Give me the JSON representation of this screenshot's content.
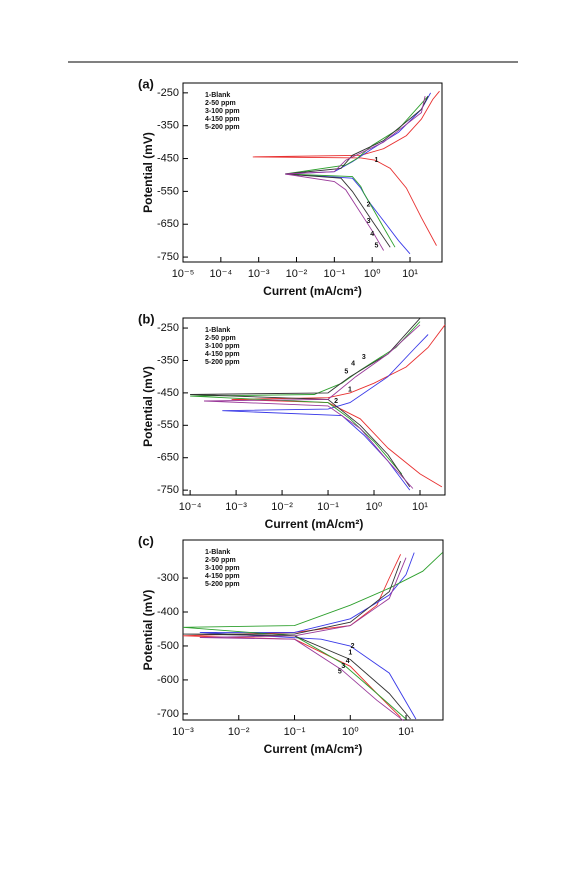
{
  "chart_data": [
    {
      "type": "line",
      "panel_label": "(a)",
      "x_label": "Current (mA/cm²)",
      "y_label": "Potential (mV)",
      "xscale": "log",
      "legend": "upper left",
      "xlim": [
        1e-05,
        70
      ],
      "ylim": [
        -765,
        -220
      ],
      "xticks": [
        {
          "value": 1e-05,
          "label": "10⁻⁵"
        },
        {
          "value": 0.0001,
          "label": "10⁻⁴"
        },
        {
          "value": 0.001,
          "label": "10⁻³"
        },
        {
          "value": 0.01,
          "label": "10⁻²"
        },
        {
          "value": 0.1,
          "label": "10⁻¹"
        },
        {
          "value": 1,
          "label": "10⁰"
        },
        {
          "value": 10,
          "label": "10¹"
        }
      ],
      "yticks": [
        -250,
        -350,
        -450,
        -550,
        -650,
        -750
      ],
      "series": [
        {
          "name": "1-Blank",
          "color": "#e83030",
          "x": [
            50,
            20,
            8,
            3,
            1.2,
            0.5,
            0.0007,
            0.5,
            2,
            8,
            20,
            40,
            60
          ],
          "values": [
            -715,
            -630,
            -540,
            -480,
            -455,
            -448,
            -445,
            -440,
            -420,
            -380,
            -330,
            -270,
            -245
          ]
        },
        {
          "name": "2-50 ppm",
          "color": "#3a3ae8",
          "x": [
            10,
            5,
            2,
            0.8,
            0.5,
            0.3,
            0.005,
            0.1,
            0.3,
            1,
            5,
            20,
            35
          ],
          "values": [
            -740,
            -700,
            -640,
            -580,
            -540,
            -510,
            -497,
            -490,
            -460,
            -420,
            -370,
            -300,
            -250
          ]
        },
        {
          "name": "3-100 ppm",
          "color": "#2ea02e",
          "x": [
            4,
            2,
            0.9,
            0.6,
            0.5,
            0.3,
            0.005,
            0.2,
            0.4,
            1,
            5,
            30
          ],
          "values": [
            -720,
            -660,
            -590,
            -555,
            -535,
            -505,
            -497,
            -470,
            -450,
            -410,
            -360,
            -260
          ]
        },
        {
          "name": "4-150 ppm",
          "color": "#333333",
          "x": [
            3,
            1,
            0.3,
            0.15,
            0.005,
            0.15,
            0.3,
            2,
            20,
            30
          ],
          "values": [
            -720,
            -640,
            -550,
            -510,
            -497,
            -480,
            -440,
            -395,
            -300,
            -260
          ]
        },
        {
          "name": "5-200 ppm",
          "color": "#9a3a9a",
          "x": [
            2,
            1,
            0.2,
            0.1,
            0.005,
            0.1,
            0.2,
            2,
            20,
            25
          ],
          "values": [
            -730,
            -670,
            -545,
            -520,
            -497,
            -490,
            -455,
            -400,
            -310,
            -260
          ]
        }
      ],
      "annotations": [
        {
          "text": "1",
          "x": 1.3,
          "y": -455
        },
        {
          "text": "2",
          "x": 0.8,
          "y": -590
        },
        {
          "text": "3",
          "x": 0.8,
          "y": -640
        },
        {
          "text": "4",
          "x": 1.0,
          "y": -680
        },
        {
          "text": "5",
          "x": 1.3,
          "y": -715
        }
      ]
    },
    {
      "type": "line",
      "panel_label": "(b)",
      "x_label": "Current (mA/cm²)",
      "y_label": "Potential (mV)",
      "xscale": "log",
      "legend": "upper left",
      "xlim": [
        7e-05,
        35
      ],
      "ylim": [
        -765,
        -219
      ],
      "xticks": [
        {
          "value": 0.0001,
          "label": "10⁻⁴"
        },
        {
          "value": 0.001,
          "label": "10⁻³"
        },
        {
          "value": 0.01,
          "label": "10⁻²"
        },
        {
          "value": 0.1,
          "label": "10⁻¹"
        },
        {
          "value": 1,
          "label": "10⁰"
        },
        {
          "value": 10,
          "label": "10¹"
        }
      ],
      "yticks": [
        -250,
        -350,
        -450,
        -550,
        -650,
        -750
      ],
      "series": [
        {
          "name": "1-Blank",
          "color": "#e83030",
          "x": [
            30,
            10,
            2,
            0.5,
            0.1,
            0.0008,
            0.1,
            0.3,
            1,
            5,
            15,
            35
          ],
          "values": [
            -740,
            -700,
            -620,
            -530,
            -480,
            -470,
            -465,
            -450,
            -420,
            -370,
            -310,
            -240
          ]
        },
        {
          "name": "2-50 ppm",
          "color": "#3a3ae8",
          "x": [
            6,
            2,
            0.6,
            0.2,
            0.0005,
            0.1,
            0.3,
            2,
            8,
            15
          ],
          "values": [
            -750,
            -660,
            -580,
            -520,
            -505,
            -500,
            -480,
            -400,
            -310,
            -270
          ]
        },
        {
          "name": "3-100 ppm",
          "color": "#2ea02e",
          "x": [
            4,
            1,
            0.3,
            0.1,
            0.0001,
            0.05,
            0.2,
            0.5,
            3,
            10
          ],
          "values": [
            -700,
            -600,
            -530,
            -480,
            -460,
            -455,
            -420,
            -380,
            -310,
            -230
          ]
        },
        {
          "name": "4-150 ppm",
          "color": "#333333",
          "x": [
            6,
            2,
            0.5,
            0.1,
            0.0001,
            0.1,
            0.3,
            2,
            10
          ],
          "values": [
            -740,
            -640,
            -550,
            -470,
            -455,
            -450,
            -400,
            -330,
            -220
          ]
        },
        {
          "name": "5-200 ppm",
          "color": "#9a3a9a",
          "x": [
            7,
            2,
            0.5,
            0.1,
            0.0002,
            0.1,
            0.4,
            2,
            10
          ],
          "values": [
            -745,
            -660,
            -560,
            -490,
            -475,
            -470,
            -400,
            -330,
            -240
          ]
        }
      ],
      "annotations": [
        {
          "text": "1",
          "x": 0.3,
          "y": -440
        },
        {
          "text": "2",
          "x": 0.15,
          "y": -475
        },
        {
          "text": "3",
          "x": 0.6,
          "y": -340
        },
        {
          "text": "4",
          "x": 0.35,
          "y": -360
        },
        {
          "text": "5",
          "x": 0.25,
          "y": -385
        }
      ]
    },
    {
      "type": "line",
      "panel_label": "(c)",
      "x_label": "Current (mA/cm²)",
      "y_label": "Potential (mV)",
      "xscale": "log",
      "legend": "upper left",
      "xlim": [
        0.001,
        46
      ],
      "ylim": [
        -718,
        -188
      ],
      "xticks": [
        {
          "value": 0.001,
          "label": "10⁻³"
        },
        {
          "value": 0.01,
          "label": "10⁻²"
        },
        {
          "value": 0.1,
          "label": "10⁻¹"
        },
        {
          "value": 1,
          "label": "10⁰"
        },
        {
          "value": 10,
          "label": "10¹"
        }
      ],
      "yticks": [
        -300,
        -400,
        -500,
        -600,
        -700
      ],
      "series": [
        {
          "name": "1-Blank",
          "color": "#e83030",
          "x": [
            8,
            3,
            1,
            0.1,
            0.001,
            0.1,
            1,
            3,
            5,
            8
          ],
          "values": [
            -710,
            -640,
            -560,
            -480,
            -470,
            -460,
            -440,
            -380,
            -300,
            -230
          ]
        },
        {
          "name": "2-50 ppm",
          "color": "#3a3ae8",
          "x": [
            15,
            5,
            1,
            0.3,
            0.002,
            0.1,
            1,
            5,
            10,
            14
          ],
          "values": [
            -715,
            -580,
            -500,
            -480,
            -460,
            -460,
            -420,
            -350,
            -290,
            -225
          ]
        },
        {
          "name": "3-100 ppm",
          "color": "#2ea02e",
          "x": [
            10,
            3,
            0.7,
            0.1,
            0.001,
            0.1,
            1,
            5,
            20,
            45
          ],
          "values": [
            -715,
            -640,
            -550,
            -470,
            -445,
            -440,
            -380,
            -330,
            -280,
            -225
          ]
        },
        {
          "name": "4-150 ppm",
          "color": "#333333",
          "x": [
            12,
            5,
            1,
            0.1,
            0.001,
            0.1,
            1,
            5,
            8
          ],
          "values": [
            -715,
            -640,
            -540,
            -470,
            -465,
            -465,
            -430,
            -340,
            -250
          ]
        },
        {
          "name": "5-200 ppm",
          "color": "#9a3a9a",
          "x": [
            9,
            3,
            0.7,
            0.1,
            0.002,
            0.1,
            1,
            5,
            10
          ],
          "values": [
            -720,
            -660,
            -570,
            -480,
            -475,
            -470,
            -440,
            -360,
            -240
          ]
        }
      ],
      "annotations": [
        {
          "text": "2",
          "x": 1.1,
          "y": -500
        },
        {
          "text": "1",
          "x": 1.0,
          "y": -520
        },
        {
          "text": "4",
          "x": 0.9,
          "y": -545
        },
        {
          "text": "3",
          "x": 0.75,
          "y": -560
        },
        {
          "text": "5",
          "x": 0.65,
          "y": -575
        }
      ]
    }
  ]
}
